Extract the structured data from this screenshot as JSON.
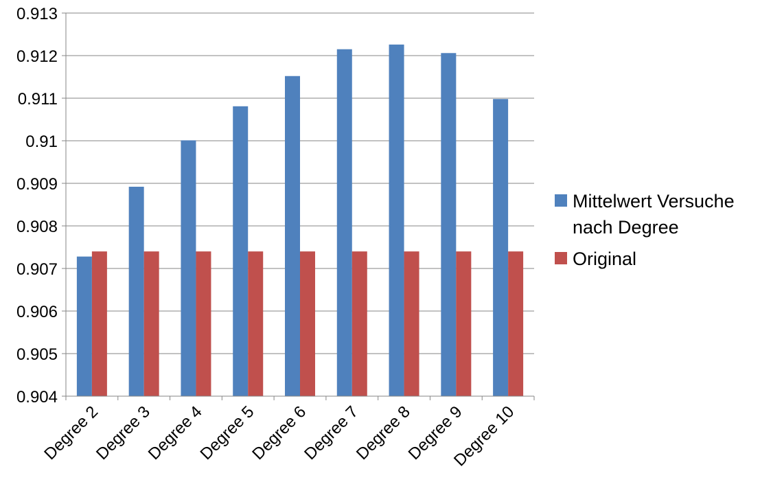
{
  "chart_data": {
    "type": "bar",
    "title": "",
    "xlabel": "",
    "ylabel": "",
    "categories": [
      "Degree 2",
      "Degree 3",
      "Degree 4",
      "Degree 5",
      "Degree 6",
      "Degree 7",
      "Degree 8",
      "Degree 9",
      "Degree 10"
    ],
    "series": [
      {
        "name": "Mittelwert Versuche nach Degree",
        "color": "#4F81BD",
        "values": [
          0.90728,
          0.90892,
          0.91001,
          0.91081,
          0.91152,
          0.91215,
          0.91226,
          0.91206,
          0.91098
        ]
      },
      {
        "name": "Original",
        "color": "#C0504D",
        "values": [
          0.9074,
          0.9074,
          0.9074,
          0.9074,
          0.9074,
          0.9074,
          0.9074,
          0.9074,
          0.9074
        ]
      }
    ],
    "ylim": [
      0.904,
      0.913
    ],
    "yticks": [
      "0.904",
      "0.905",
      "0.906",
      "0.907",
      "0.908",
      "0.909",
      "0.91",
      "0.911",
      "0.912",
      "0.913"
    ],
    "grid": true,
    "legend": {
      "placement": "right",
      "entries": [
        {
          "lines": [
            "Mittelwert Versuche",
            "nach Degree"
          ]
        },
        {
          "lines": [
            "Original"
          ]
        }
      ]
    }
  }
}
